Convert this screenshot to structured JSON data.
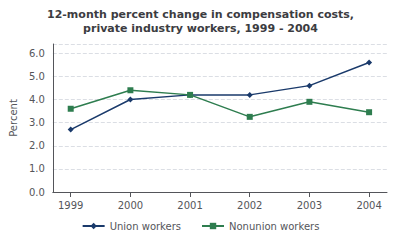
{
  "chart_data": {
    "type": "line",
    "title": "12-month percent change in compensation costs,\nprivate industry workers, 1999 - 2004",
    "ylabel": "Percent",
    "x": [
      1999,
      2000,
      2001,
      2002,
      2003,
      2004
    ],
    "series": [
      {
        "name": "Union workers",
        "color": "#1a3a6b",
        "marker": "diamond",
        "values": [
          2.7,
          4.0,
          4.2,
          4.2,
          4.6,
          5.6
        ]
      },
      {
        "name": "Nonunion workers",
        "color": "#2e7d4f",
        "marker": "square",
        "values": [
          3.6,
          4.4,
          4.2,
          3.25,
          3.9,
          3.45
        ]
      }
    ],
    "xlim": [
      1998.7,
      2004.3
    ],
    "xticks": [
      1999,
      2000,
      2001,
      2002,
      2003,
      2004
    ],
    "ylim": [
      0.0,
      6.4
    ],
    "yticks": [
      {
        "value": 0.0,
        "label": "0.0"
      },
      {
        "value": 1.0,
        "label": "1.0"
      },
      {
        "value": 2.0,
        "label": "2.0"
      },
      {
        "value": 3.0,
        "label": "3.0"
      },
      {
        "value": 4.0,
        "label": "4.0"
      },
      {
        "value": 5.0,
        "label": "5.0"
      },
      {
        "value": 6.0,
        "label": "6.0"
      }
    ],
    "grid": true,
    "legend": "bottom"
  }
}
